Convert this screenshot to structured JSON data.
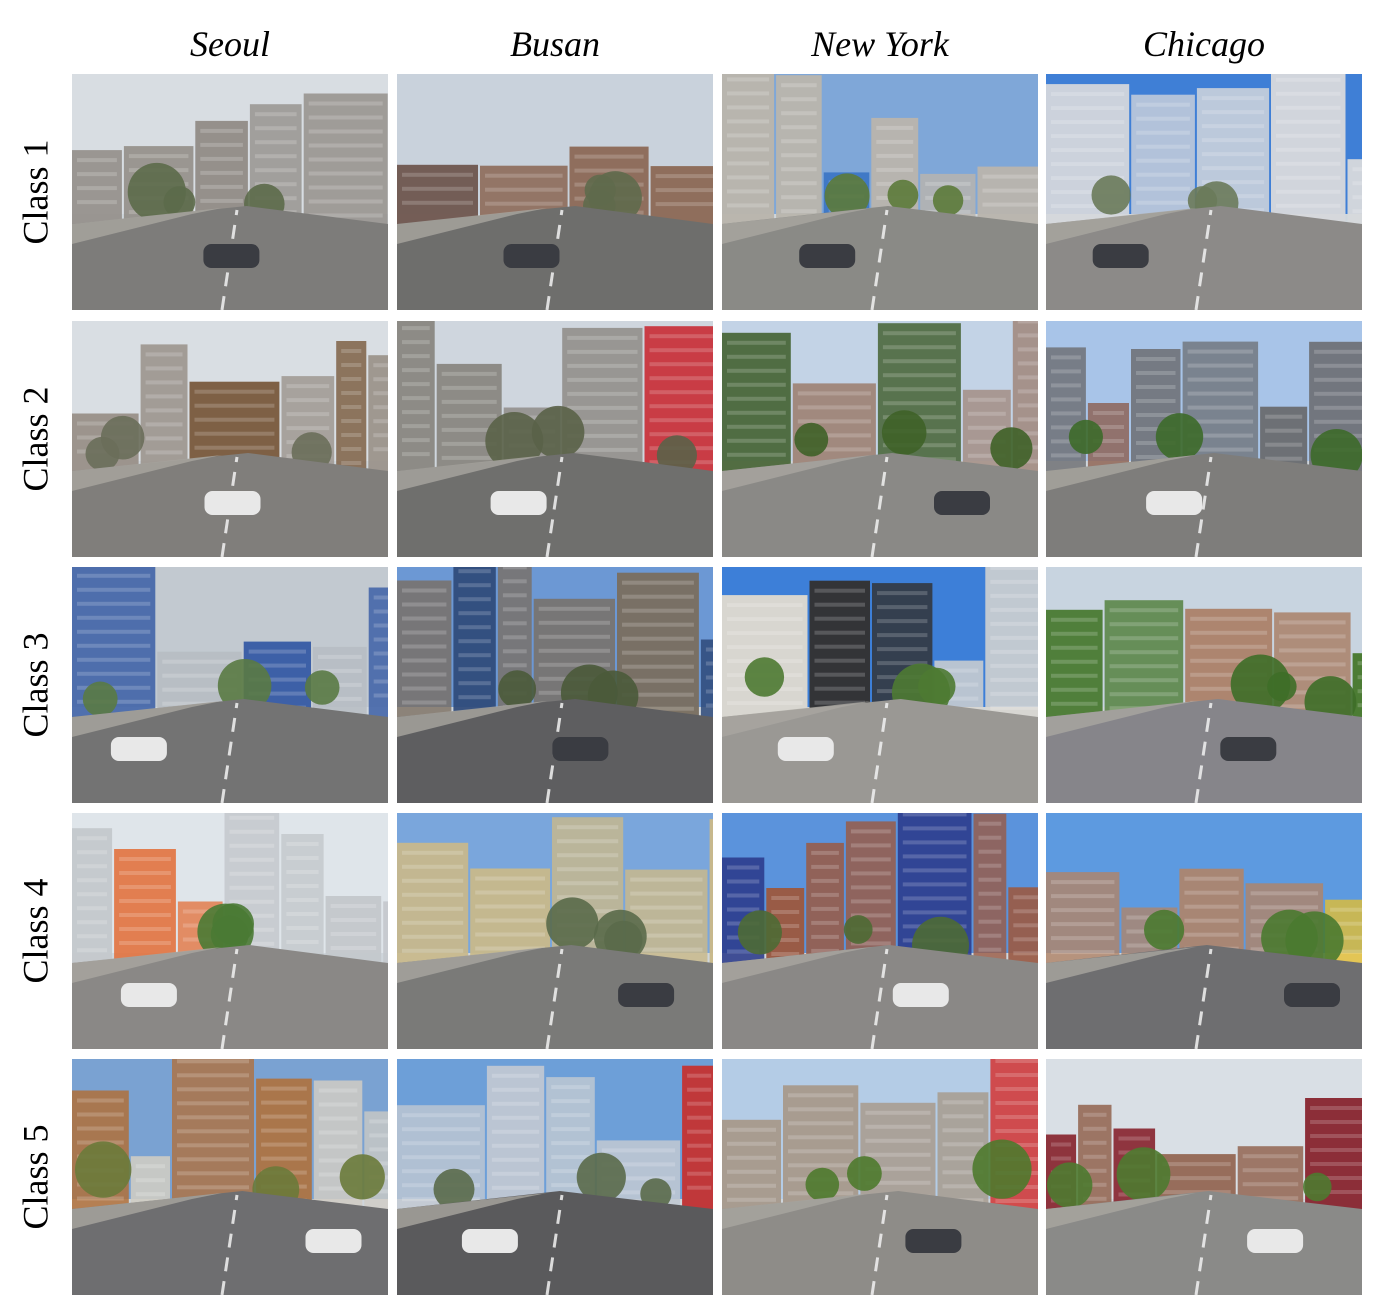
{
  "columns": [
    "Seoul",
    "Busan",
    "New York",
    "Chicago"
  ],
  "rows": [
    "Class 1",
    "Class 2",
    "Class 3",
    "Class 4",
    "Class 5"
  ],
  "cells": [
    [
      {
        "city": "Seoul",
        "class": "Class 1",
        "sky": "#d8dde2",
        "buildings": "#8f8a84",
        "accent": "#6c5048",
        "road": "#7d7c7a",
        "trees": "#5c6a4a"
      },
      {
        "city": "Busan",
        "class": "Class 1",
        "sky": "#c9d2dc",
        "buildings": "#8e6c5a",
        "accent": "#5b3d32",
        "road": "#6e6e6c",
        "trees": "#5f6a4c"
      },
      {
        "city": "New York",
        "class": "Class 1",
        "sky": "#7fa7d8",
        "buildings": "#b9b5ad",
        "accent": "#2e6cc0",
        "road": "#8a8a86",
        "trees": "#5c7a3a"
      },
      {
        "city": "Chicago",
        "class": "Class 1",
        "sky": "#3f7fd6",
        "buildings": "#d6d8dc",
        "accent": "#a84c3c",
        "road": "#8c8a88",
        "trees": "#6a7a5a"
      }
    ],
    [
      {
        "city": "Seoul",
        "class": "Class 2",
        "sky": "#d9dee3",
        "buildings": "#9a928a",
        "accent": "#7a5b3e",
        "road": "#807e7b",
        "trees": "#6a6e5a"
      },
      {
        "city": "Busan",
        "class": "Class 2",
        "sky": "#cfd6de",
        "buildings": "#88847e",
        "accent": "#c8343c",
        "road": "#6f6f6d",
        "trees": "#5a6248"
      },
      {
        "city": "New York",
        "class": "Class 2",
        "sky": "#c3d3e6",
        "buildings": "#a0867a",
        "accent": "#3f5d2a",
        "road": "#8a8986",
        "trees": "#3f6228"
      },
      {
        "city": "Chicago",
        "class": "Class 2",
        "sky": "#a8c4e8",
        "buildings": "#6c6e72",
        "accent": "#8a5a48",
        "road": "#7e7d7b",
        "trees": "#3d6a2a"
      }
    ],
    [
      {
        "city": "Seoul",
        "class": "Class 3",
        "sky": "#c2c9d0",
        "buildings": "#b6bcc2",
        "accent": "#3a5ea6",
        "road": "#737373",
        "trees": "#5a7a44"
      },
      {
        "city": "Busan",
        "class": "Class 3",
        "sky": "#6c98d4",
        "buildings": "#7a6e60",
        "accent": "#2e4a7a",
        "road": "#5e5e60",
        "trees": "#4a5a3a"
      },
      {
        "city": "New York",
        "class": "Class 3",
        "sky": "#3d7fd8",
        "buildings": "#d8d6d0",
        "accent": "#333333",
        "road": "#9a9894",
        "trees": "#4e7a32"
      },
      {
        "city": "Chicago",
        "class": "Class 3",
        "sky": "#c8d4e0",
        "buildings": "#a87a5e",
        "accent": "#4a7a32",
        "road": "#86858a",
        "trees": "#3e6e28"
      }
    ],
    [
      {
        "city": "Seoul",
        "class": "Class 4",
        "sky": "#dfe5ea",
        "buildings": "#c4c8cc",
        "accent": "#e2703a",
        "road": "#8a8886",
        "trees": "#4a7a34"
      },
      {
        "city": "Busan",
        "class": "Class 4",
        "sky": "#7aa6dc",
        "buildings": "#c9b98a",
        "accent": "#2b2f36",
        "road": "#7a7a78",
        "trees": "#5a6a4a"
      },
      {
        "city": "New York",
        "class": "Class 4",
        "sky": "#5b93dc",
        "buildings": "#9a5a44",
        "accent": "#2a3a8a",
        "road": "#8a8886",
        "trees": "#4e6a34"
      },
      {
        "city": "Chicago",
        "class": "Class 4",
        "sky": "#5d9ae0",
        "buildings": "#b08468",
        "accent": "#e8c02a",
        "road": "#6e6e70",
        "trees": "#4a7a30"
      }
    ],
    [
      {
        "city": "Seoul",
        "class": "Class 5",
        "sky": "#7aa2d2",
        "buildings": "#d0ccc4",
        "accent": "#b0703a",
        "road": "#6e6e70",
        "trees": "#6a7a3a"
      },
      {
        "city": "Busan",
        "class": "Class 5",
        "sky": "#6d9fd8",
        "buildings": "#c0c8d2",
        "accent": "#c0383a",
        "road": "#5a5a5c",
        "trees": "#5a6a4a"
      },
      {
        "city": "New York",
        "class": "Class 5",
        "sky": "#b4cce6",
        "buildings": "#a89c90",
        "accent": "#d23a3a",
        "road": "#8e8c88",
        "trees": "#4e7a2e"
      },
      {
        "city": "Chicago",
        "class": "Class 5",
        "sky": "#d9dfe5",
        "buildings": "#8c5a44",
        "accent": "#8a2a34",
        "road": "#8a8a88",
        "trees": "#4e7a30"
      }
    ]
  ]
}
